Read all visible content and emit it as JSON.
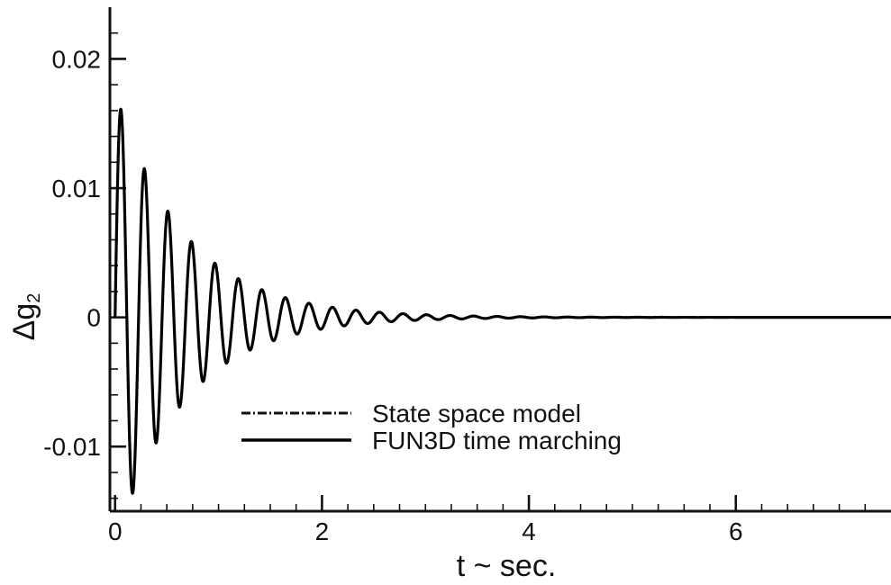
{
  "chart_data": {
    "type": "line",
    "title": "",
    "xlabel": "t ~ sec.",
    "ylabel": "Δg",
    "ylabel_subscript": "2",
    "xlim": [
      -0.05,
      7.5
    ],
    "ylim": [
      -0.015,
      0.024
    ],
    "x_ticks": [
      0,
      2,
      4,
      6
    ],
    "x_tick_labels": [
      "0",
      "2",
      "4",
      "6"
    ],
    "x_minor_step": 0.25,
    "y_ticks": [
      -0.01,
      0,
      0.01,
      0.02
    ],
    "y_tick_labels": [
      "-0.01",
      "0",
      "0.01",
      "0.02"
    ],
    "y_minor_step": 0.002,
    "grid": false,
    "legend_position": "lower-center",
    "series": [
      {
        "name": "State space model",
        "style": "dash-dot",
        "color": "#111111",
        "x_start": 0,
        "x_end": 7.5,
        "amplitude": 0.0175,
        "frequency_hz": 4.4,
        "decay_rate": 1.48
      },
      {
        "name": "FUN3D time marching",
        "style": "solid",
        "color": "#000000",
        "x_start": 0,
        "x_end": 7.5,
        "amplitude": 0.0175,
        "frequency_hz": 4.4,
        "decay_rate": 1.48
      }
    ]
  }
}
